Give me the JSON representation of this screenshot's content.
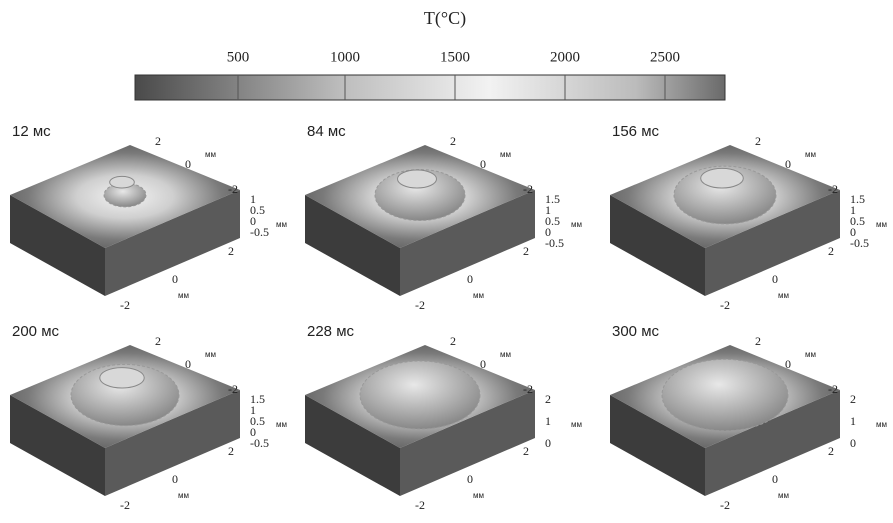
{
  "colorbar": {
    "title": "T(°C)",
    "ticks": [
      "500",
      "1000",
      "1500",
      "2000",
      "2500"
    ]
  },
  "panels": [
    {
      "label": "12 мс",
      "y_ticks": [
        "2",
        "0",
        "-2"
      ],
      "y_unit": "мм",
      "z_ticks": [
        "1",
        "0.5",
        "0",
        "-0.5"
      ],
      "z_unit": "мм",
      "x_ticks": [
        "2",
        "0",
        "-2"
      ],
      "x_unit": "мм"
    },
    {
      "label": "84 мс",
      "y_ticks": [
        "2",
        "0",
        "-2"
      ],
      "y_unit": "мм",
      "z_ticks": [
        "1.5",
        "1",
        "0.5",
        "0",
        "-0.5"
      ],
      "z_unit": "мм",
      "x_ticks": [
        "2",
        "0",
        "-2"
      ],
      "x_unit": "мм"
    },
    {
      "label": "156 мс",
      "y_ticks": [
        "2",
        "0",
        "-2"
      ],
      "y_unit": "мм",
      "z_ticks": [
        "1.5",
        "1",
        "0.5",
        "0",
        "-0.5"
      ],
      "z_unit": "мм",
      "x_ticks": [
        "2",
        "0",
        "-2"
      ],
      "x_unit": "мм"
    },
    {
      "label": "200 мс",
      "y_ticks": [
        "2",
        "0",
        "-2"
      ],
      "y_unit": "мм",
      "z_ticks": [
        "1.5",
        "1",
        "0.5",
        "0",
        "-0.5"
      ],
      "z_unit": "мм",
      "x_ticks": [
        "2",
        "0",
        "-2"
      ],
      "x_unit": "мм"
    },
    {
      "label": "228 мс",
      "y_ticks": [
        "2",
        "0",
        "-2"
      ],
      "y_unit": "мм",
      "z_ticks": [
        "2",
        "1",
        "0"
      ],
      "z_unit": "мм",
      "x_ticks": [
        "2",
        "0",
        "-2"
      ],
      "x_unit": "мм"
    },
    {
      "label": "300 мс",
      "y_ticks": [
        "2",
        "0",
        "-2"
      ],
      "y_unit": "мм",
      "z_ticks": [
        "2",
        "1",
        "0"
      ],
      "z_unit": "мм",
      "x_ticks": [
        "2",
        "0",
        "-2"
      ],
      "x_unit": "мм"
    }
  ]
}
